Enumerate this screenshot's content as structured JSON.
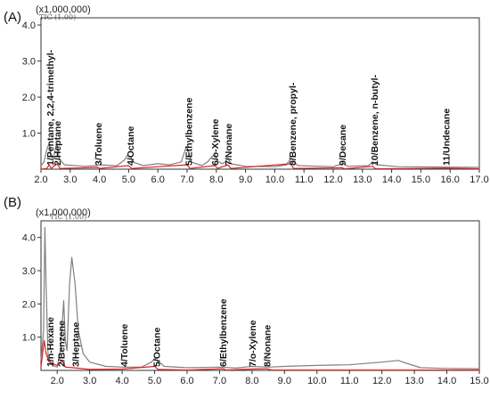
{
  "chart_data": [
    {
      "type": "line",
      "panel_label": "(A)",
      "multiplier_label": "(x1,000,000)",
      "trace_label": "TIC (1.00)",
      "xlim": [
        2.0,
        17.0
      ],
      "ylim": [
        0,
        4.2
      ],
      "x_ticks": [
        "2.0",
        "3.0",
        "4.0",
        "5.0",
        "6.0",
        "7.0",
        "8.0",
        "9.0",
        "10.0",
        "11.0",
        "12.0",
        "13.0",
        "14.0",
        "15.0",
        "16.0",
        "17.0"
      ],
      "y_ticks": [
        "1.0",
        "2.0",
        "3.0",
        "4.0"
      ],
      "peak_labels": [
        {
          "text": "1/Pentane, 2,2,4-trimethyl-",
          "x": 2.3
        },
        {
          "text": "2/Heptane",
          "x": 2.55
        },
        {
          "text": "3/Toluene",
          "x": 3.95
        },
        {
          "text": "4/Octane",
          "x": 5.05
        },
        {
          "text": "5/Ethylbenzene",
          "x": 7.05
        },
        {
          "text": "6/o-Xylene",
          "x": 7.95
        },
        {
          "text": "7/Nonane",
          "x": 8.4
        },
        {
          "text": "8/Benzene, propyl-",
          "x": 10.6
        },
        {
          "text": "9/Decane",
          "x": 12.3
        },
        {
          "text": "10/Benzene, n-butyl-",
          "x": 13.4
        },
        {
          "text": "11/Undecane",
          "x": 15.85
        }
      ],
      "series": [
        {
          "color": "#808080",
          "points": [
            [
              2.0,
              0.1
            ],
            [
              2.1,
              0.2
            ],
            [
              2.2,
              0.55
            ],
            [
              2.28,
              0.72
            ],
            [
              2.33,
              0.45
            ],
            [
              2.42,
              0.3
            ],
            [
              2.5,
              0.6
            ],
            [
              2.55,
              0.72
            ],
            [
              2.62,
              0.3
            ],
            [
              2.8,
              0.12
            ],
            [
              3.5,
              0.08
            ],
            [
              3.9,
              0.1
            ],
            [
              4.0,
              0.12
            ],
            [
              4.6,
              0.1
            ],
            [
              4.85,
              0.25
            ],
            [
              4.95,
              0.38
            ],
            [
              5.05,
              0.35
            ],
            [
              5.2,
              0.18
            ],
            [
              5.5,
              0.1
            ],
            [
              6.0,
              0.15
            ],
            [
              6.4,
              0.12
            ],
            [
              6.8,
              0.2
            ],
            [
              6.9,
              0.45
            ],
            [
              6.97,
              0.62
            ],
            [
              7.05,
              0.5
            ],
            [
              7.15,
              0.2
            ],
            [
              7.5,
              0.1
            ],
            [
              7.7,
              0.2
            ],
            [
              7.85,
              0.35
            ],
            [
              7.95,
              0.4
            ],
            [
              8.05,
              0.22
            ],
            [
              8.2,
              0.15
            ],
            [
              8.3,
              0.2
            ],
            [
              8.4,
              0.3
            ],
            [
              8.5,
              0.15
            ],
            [
              9.0,
              0.08
            ],
            [
              10.0,
              0.07
            ],
            [
              10.4,
              0.12
            ],
            [
              10.55,
              0.3
            ],
            [
              10.65,
              0.2
            ],
            [
              10.8,
              0.1
            ],
            [
              12.0,
              0.07
            ],
            [
              12.2,
              0.12
            ],
            [
              12.35,
              0.15
            ],
            [
              12.5,
              0.08
            ],
            [
              13.2,
              0.1
            ],
            [
              13.35,
              0.2
            ],
            [
              13.5,
              0.12
            ],
            [
              14.2,
              0.07
            ],
            [
              15.8,
              0.06
            ],
            [
              17.0,
              0.05
            ]
          ]
        },
        {
          "color": "#e02020",
          "points": [
            [
              2.0,
              0.0
            ],
            [
              2.2,
              0.02
            ],
            [
              2.28,
              0.12
            ],
            [
              2.35,
              0.02
            ],
            [
              2.55,
              0.15
            ],
            [
              2.65,
              0.02
            ],
            [
              3.95,
              0.05
            ],
            [
              4.0,
              0.02
            ],
            [
              5.0,
              0.1
            ],
            [
              5.1,
              0.02
            ],
            [
              7.0,
              0.12
            ],
            [
              7.1,
              0.02
            ],
            [
              7.95,
              0.1
            ],
            [
              8.05,
              0.02
            ],
            [
              8.4,
              0.12
            ],
            [
              8.5,
              0.02
            ],
            [
              10.55,
              0.15
            ],
            [
              10.65,
              0.02
            ],
            [
              12.3,
              0.04
            ],
            [
              12.4,
              0.01
            ],
            [
              13.35,
              0.08
            ],
            [
              13.45,
              0.01
            ],
            [
              15.85,
              0.03
            ],
            [
              17.0,
              0.01
            ]
          ]
        }
      ]
    },
    {
      "type": "line",
      "panel_label": "(B)",
      "multiplier_label": "(x1,000,000)",
      "trace_label": "TIC (1.00)",
      "xlim": [
        1.5,
        15.0
      ],
      "ylim": [
        0,
        4.5
      ],
      "x_ticks": [
        "2.0",
        "3.0",
        "4.0",
        "5.0",
        "6.0",
        "7.0",
        "8.0",
        "9.0",
        "10.0",
        "11.0",
        "12.0",
        "13.0",
        "14.0",
        "15.0"
      ],
      "y_ticks": [
        "1.0",
        "2.0",
        "3.0",
        "4.0"
      ],
      "peak_labels": [
        {
          "text": "1/n-Hexane",
          "x": 1.78
        },
        {
          "text": "2/Benzene",
          "x": 2.12
        },
        {
          "text": "3/Heptane",
          "x": 2.55
        },
        {
          "text": "4/Toluene",
          "x": 4.05
        },
        {
          "text": "5/Octane",
          "x": 5.05
        },
        {
          "text": "6/Ethylbenzene",
          "x": 7.1
        },
        {
          "text": "7/o-Xylene",
          "x": 8.0
        },
        {
          "text": "8/Nonane",
          "x": 8.45
        }
      ],
      "series": [
        {
          "color": "#808080",
          "points": [
            [
              1.5,
              0.3
            ],
            [
              1.58,
              1.2
            ],
            [
              1.62,
              4.3
            ],
            [
              1.66,
              2.5
            ],
            [
              1.72,
              0.4
            ],
            [
              1.85,
              0.15
            ],
            [
              2.0,
              0.1
            ],
            [
              2.1,
              0.6
            ],
            [
              2.2,
              2.1
            ],
            [
              2.25,
              0.9
            ],
            [
              2.3,
              0.6
            ],
            [
              2.38,
              2.6
            ],
            [
              2.45,
              3.4
            ],
            [
              2.55,
              2.6
            ],
            [
              2.65,
              1.2
            ],
            [
              2.8,
              0.5
            ],
            [
              3.0,
              0.25
            ],
            [
              3.5,
              0.12
            ],
            [
              4.0,
              0.1
            ],
            [
              4.6,
              0.1
            ],
            [
              4.9,
              0.25
            ],
            [
              5.0,
              0.35
            ],
            [
              5.1,
              0.28
            ],
            [
              5.3,
              0.12
            ],
            [
              6.0,
              0.08
            ],
            [
              7.0,
              0.1
            ],
            [
              7.5,
              0.07
            ],
            [
              8.0,
              0.12
            ],
            [
              8.5,
              0.1
            ],
            [
              9.0,
              0.12
            ],
            [
              10.0,
              0.15
            ],
            [
              11.0,
              0.17
            ],
            [
              12.0,
              0.25
            ],
            [
              12.5,
              0.3
            ],
            [
              12.8,
              0.2
            ],
            [
              13.2,
              0.08
            ],
            [
              14.0,
              0.06
            ],
            [
              15.0,
              0.05
            ]
          ]
        },
        {
          "color": "#e02020",
          "points": [
            [
              1.5,
              0.1
            ],
            [
              1.6,
              0.9
            ],
            [
              1.66,
              0.5
            ],
            [
              1.75,
              0.25
            ],
            [
              2.0,
              0.15
            ],
            [
              2.15,
              0.3
            ],
            [
              2.25,
              0.1
            ],
            [
              2.5,
              0.08
            ],
            [
              3.0,
              0.03
            ],
            [
              4.0,
              0.04
            ],
            [
              5.0,
              0.12
            ],
            [
              5.1,
              0.03
            ],
            [
              6.0,
              0.01
            ],
            [
              7.1,
              0.05
            ],
            [
              7.2,
              0.01
            ],
            [
              8.0,
              0.04
            ],
            [
              8.45,
              0.05
            ],
            [
              8.6,
              0.01
            ],
            [
              15.0,
              0.01
            ]
          ]
        }
      ]
    }
  ]
}
